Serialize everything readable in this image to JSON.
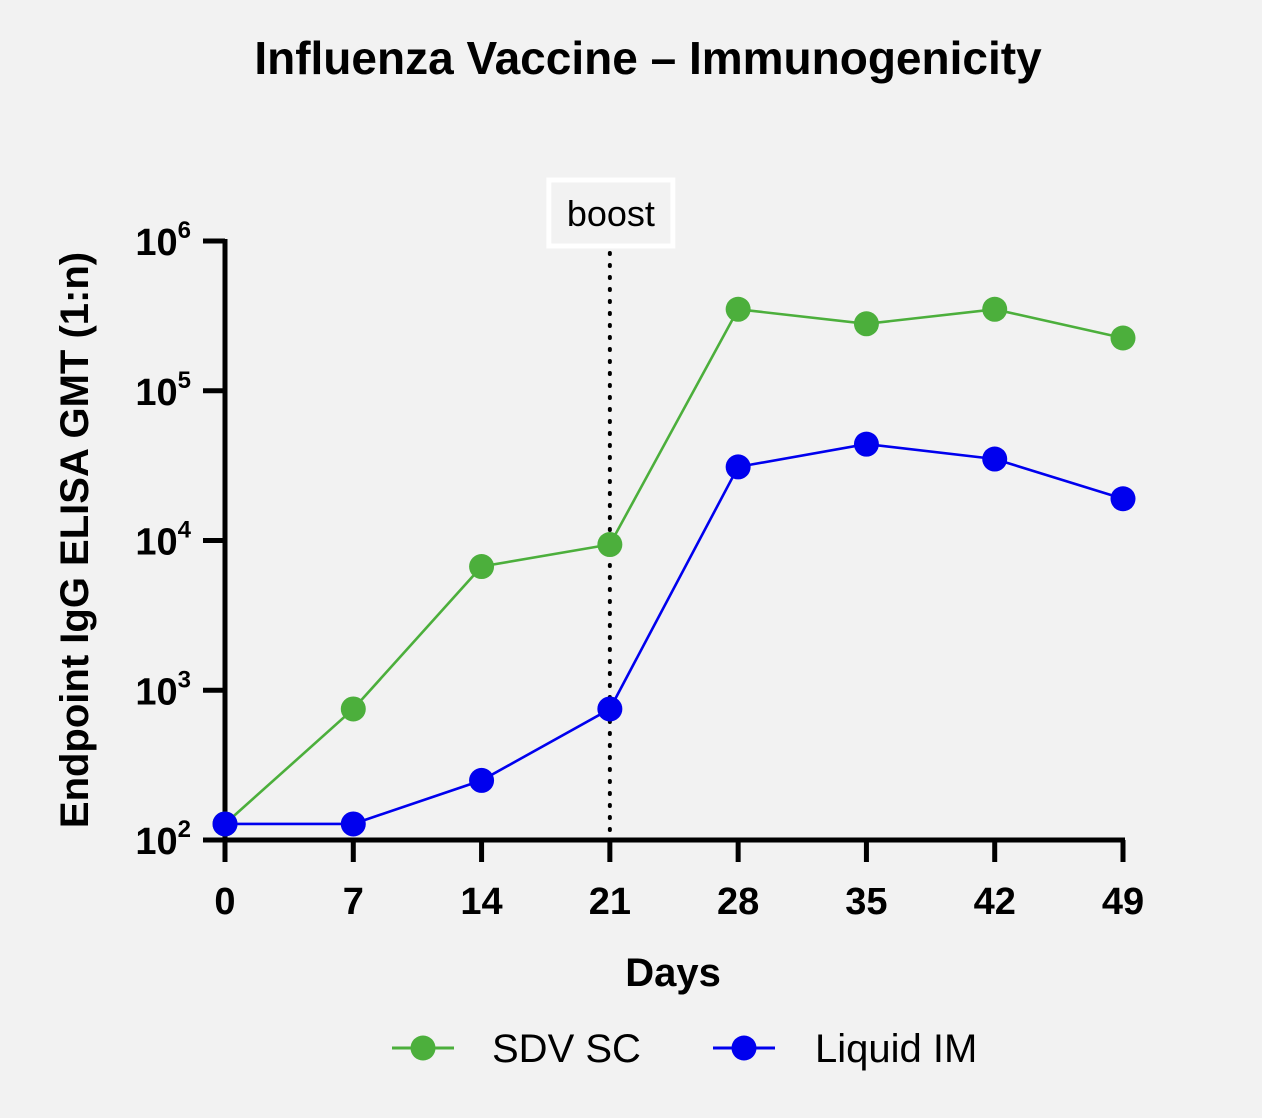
{
  "chart_data": {
    "type": "line",
    "title": "Influenza Vaccine – Immunogenicity",
    "xlabel": "Days",
    "ylabel": "Endpoint IgG ELISA GMT (1:n)",
    "x": [
      0,
      7,
      14,
      21,
      28,
      35,
      42,
      49
    ],
    "x_tick_labels": [
      "0",
      "7",
      "14",
      "21",
      "28",
      "35",
      "42",
      "49"
    ],
    "xlim": [
      0,
      49
    ],
    "yscale": "log",
    "ylim": [
      100,
      1000000
    ],
    "y_ticks": [
      {
        "base": "10",
        "exp": "2",
        "value": 100
      },
      {
        "base": "10",
        "exp": "3",
        "value": 1000
      },
      {
        "base": "10",
        "exp": "4",
        "value": 10000
      },
      {
        "base": "10",
        "exp": "5",
        "value": 100000
      },
      {
        "base": "10",
        "exp": "6",
        "value": 1000000
      }
    ],
    "series": [
      {
        "name": "SDV SC",
        "color": "#4caf3c",
        "values": [
          128,
          750,
          6700,
          9400,
          350000,
          280000,
          350000,
          225000
        ]
      },
      {
        "name": "Liquid IM",
        "color": "#0000ee",
        "values": [
          128,
          128,
          250,
          750,
          31000,
          44000,
          35000,
          19000
        ]
      }
    ],
    "annotations": [
      {
        "text": "boost",
        "x": 21,
        "style": "dotted vertical line"
      }
    ],
    "grid": false,
    "legend_position": "bottom"
  }
}
